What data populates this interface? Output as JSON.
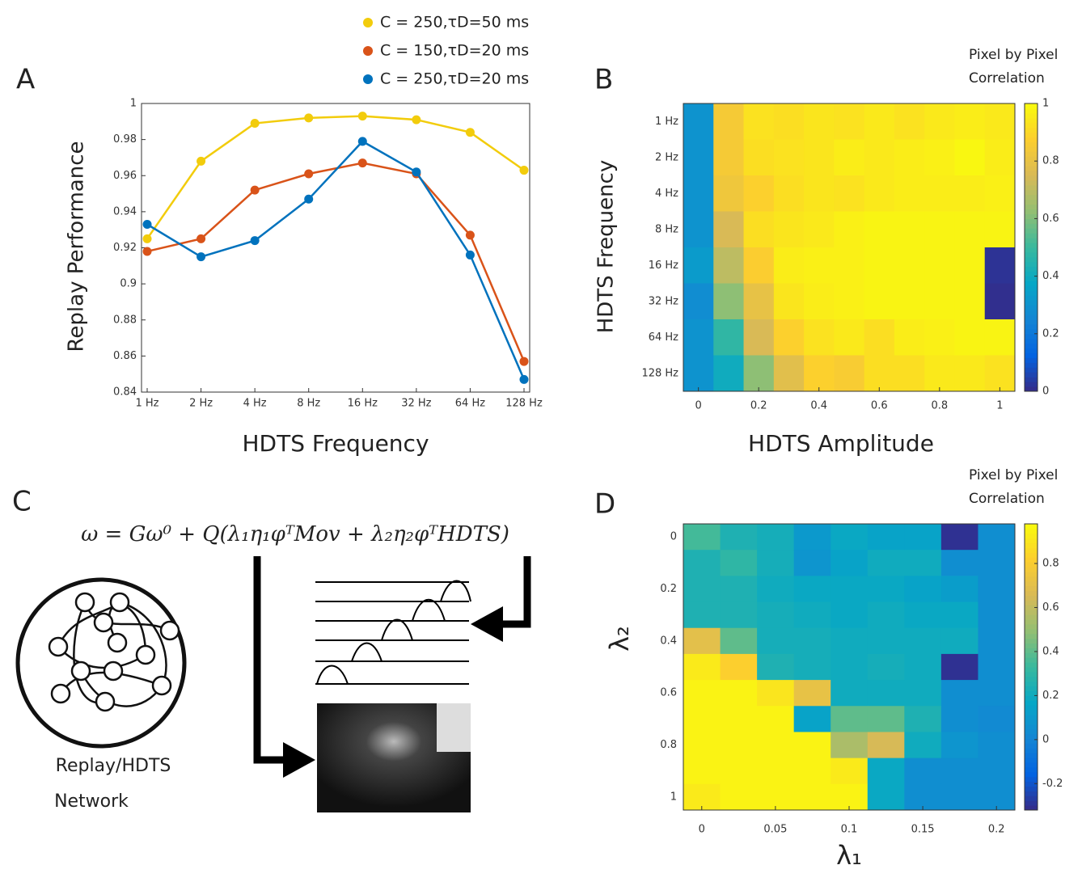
{
  "chart_data": [
    {
      "type": "line",
      "panel_label": "A",
      "y_label": "Replay Performance",
      "x_label": "HDTS Frequency",
      "categories": [
        "1 Hz",
        "2 Hz",
        "4 Hz",
        "8 Hz",
        "16 Hz",
        "32 Hz",
        "64 Hz",
        "128 Hz"
      ],
      "ylim": [
        0.84,
        1
      ],
      "yticks": [
        0.84,
        0.86,
        0.88,
        0.9,
        0.92,
        0.94,
        0.96,
        0.98,
        1
      ],
      "series": [
        {
          "name": "C = 250,τD=50 ms",
          "color": "#f2cc0c",
          "values": [
            0.925,
            0.968,
            0.989,
            0.992,
            0.993,
            0.991,
            0.984,
            0.963
          ]
        },
        {
          "name": "C = 150,τD=20 ms",
          "color": "#d95319",
          "values": [
            0.918,
            0.925,
            0.952,
            0.961,
            0.967,
            0.961,
            0.927,
            0.857
          ]
        },
        {
          "name": "C = 250,τD=20 ms",
          "color": "#0072bd",
          "values": [
            0.933,
            0.915,
            0.924,
            0.947,
            0.979,
            0.962,
            0.916,
            0.847
          ]
        }
      ]
    },
    {
      "type": "heatmap",
      "panel_label": "B",
      "x_label": "HDTS Amplitude",
      "y_label": "HDTS Frequency",
      "colorbar_title": [
        "Pixel by Pixel",
        "Correlation"
      ],
      "colormap": "parula",
      "x": [
        0,
        0.1,
        0.2,
        0.3,
        0.4,
        0.5,
        0.6,
        0.7,
        0.8,
        0.9,
        1
      ],
      "xlim": [
        -0.05,
        1.05
      ],
      "xticks": [
        0,
        0.2,
        0.4,
        0.6,
        0.8,
        1
      ],
      "categories": [
        "1 Hz",
        "2 Hz",
        "4 Hz",
        "8 Hz",
        "16 Hz",
        "32 Hz",
        "64 Hz",
        "128 Hz"
      ],
      "clim": [
        0,
        1
      ],
      "cticks": [
        0,
        0.2,
        0.4,
        0.6,
        0.8,
        1
      ],
      "values": [
        [
          0.3,
          0.85,
          0.93,
          0.92,
          0.94,
          0.93,
          0.95,
          0.93,
          0.95,
          0.96,
          0.95
        ],
        [
          0.3,
          0.85,
          0.92,
          0.93,
          0.94,
          0.96,
          0.95,
          0.96,
          0.97,
          0.99,
          0.96
        ],
        [
          0.3,
          0.83,
          0.88,
          0.92,
          0.94,
          0.93,
          0.95,
          0.96,
          0.96,
          0.96,
          0.97
        ],
        [
          0.3,
          0.75,
          0.92,
          0.94,
          0.95,
          0.97,
          0.98,
          0.98,
          0.98,
          0.98,
          0.98
        ],
        [
          0.33,
          0.7,
          0.87,
          0.96,
          0.97,
          0.97,
          0.98,
          0.98,
          0.98,
          0.98,
          0.02
        ],
        [
          0.28,
          0.62,
          0.8,
          0.94,
          0.96,
          0.97,
          0.98,
          0.98,
          0.98,
          0.98,
          0.01
        ],
        [
          0.3,
          0.48,
          0.75,
          0.88,
          0.93,
          0.95,
          0.92,
          0.96,
          0.97,
          0.98,
          0.98
        ],
        [
          0.3,
          0.4,
          0.62,
          0.78,
          0.88,
          0.86,
          0.92,
          0.92,
          0.95,
          0.95,
          0.93
        ]
      ]
    },
    {
      "type": "heatmap",
      "panel_label": "D",
      "x_label": "λ₁",
      "y_label": "λ₂",
      "colorbar_title": [
        "Pixel by Pixel",
        "Correlation"
      ],
      "colormap": "parula",
      "x": [
        0,
        0.025,
        0.05,
        0.075,
        0.1,
        0.125,
        0.15,
        0.175,
        0.2
      ],
      "xlim": [
        -0.0125,
        0.2125
      ],
      "xticks": [
        0,
        0.05,
        0.1,
        0.15,
        0.2
      ],
      "y": [
        0,
        0.1,
        0.2,
        0.3,
        0.4,
        0.5,
        0.6,
        0.7,
        0.8,
        0.9,
        1
      ],
      "ylim": [
        -0.05,
        1.05
      ],
      "y_reverse": true,
      "yticks": [
        0,
        0.2,
        0.4,
        0.6,
        0.8,
        1
      ],
      "clim": [
        -0.32,
        0.98
      ],
      "cticks": [
        -0.2,
        0,
        0.2,
        0.4,
        0.6,
        0.8
      ],
      "values": [
        [
          0.35,
          0.25,
          0.22,
          0.1,
          0.18,
          0.15,
          0.15,
          -0.3,
          0.05
        ],
        [
          0.25,
          0.3,
          0.22,
          0.08,
          0.15,
          0.2,
          0.2,
          0.05,
          0.05
        ],
        [
          0.25,
          0.25,
          0.2,
          0.18,
          0.18,
          0.18,
          0.15,
          0.12,
          0.05
        ],
        [
          0.25,
          0.25,
          0.22,
          0.2,
          0.18,
          0.2,
          0.18,
          0.18,
          0.05
        ],
        [
          0.7,
          0.4,
          0.22,
          0.22,
          0.2,
          0.2,
          0.2,
          0.2,
          0.05
        ],
        [
          0.92,
          0.82,
          0.25,
          0.22,
          0.2,
          0.22,
          0.2,
          -0.3,
          0.05
        ],
        [
          0.95,
          0.95,
          0.9,
          0.72,
          0.2,
          0.2,
          0.2,
          0.05,
          0.05
        ],
        [
          0.95,
          0.95,
          0.95,
          0.15,
          0.4,
          0.4,
          0.25,
          0.05,
          0.03
        ],
        [
          0.95,
          0.95,
          0.95,
          0.95,
          0.55,
          0.65,
          0.2,
          0.08,
          0.05
        ],
        [
          0.95,
          0.95,
          0.95,
          0.95,
          0.92,
          0.18,
          0.05,
          0.05,
          0.05
        ],
        [
          0.92,
          0.95,
          0.95,
          0.95,
          0.95,
          0.18,
          0.05,
          0.05,
          0.05
        ]
      ]
    }
  ],
  "diagram": {
    "panel_label": "C",
    "equation": "ω = Gω⁰ + Q(λ₁η₁φᵀMov + λ₂η₂φᵀHDTS)",
    "caption": [
      "Replay/HDTS",
      "Network"
    ]
  }
}
